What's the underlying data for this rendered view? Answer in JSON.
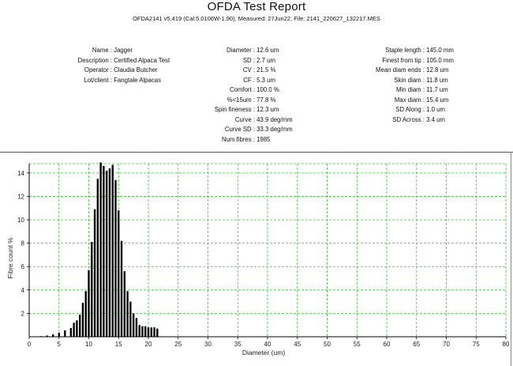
{
  "report": {
    "title": "OFDA Test Report",
    "subtitle": "OFDA2141 v5.419 (Cal:5.0106W-1.90), Measured: 27Jun22, File: 2141_220627_132217.MES"
  },
  "info": {
    "left": [
      {
        "label": "Name :",
        "value": "Jagger"
      },
      {
        "label": "Description :",
        "value": "Certified Alpaca Test"
      },
      {
        "label": "Operator :",
        "value": "Claudia Butcher"
      },
      {
        "label": "Lot/client :",
        "value": "Fangtale Alpacas"
      }
    ],
    "middle": [
      {
        "label": "Diameter :",
        "value": "12.6 um"
      },
      {
        "label": "SD :",
        "value": "2.7 um"
      },
      {
        "label": "CV :",
        "value": "21.5 %"
      },
      {
        "label": "CF :",
        "value": "5.3 um"
      },
      {
        "label": "Comfort :",
        "value": "100.0 %"
      },
      {
        "label": "%<15um :",
        "value": "77.8 %"
      },
      {
        "label": "Spin fineness :",
        "value": "12.3 um"
      },
      {
        "label": "Curve :",
        "value": "43.9 deg/mm"
      },
      {
        "label": "Curve SD :",
        "value": "33.3 deg/mm"
      },
      {
        "label": "Num fibres :",
        "value": "1985"
      }
    ],
    "right": [
      {
        "label": "Staple length :",
        "value": "145.0 mm"
      },
      {
        "label": "Finest from tip :",
        "value": "105.0 mm"
      },
      {
        "label": "Mean diam ends :",
        "value": "12.8 um"
      },
      {
        "label": "Skin diam :",
        "value": "11.8 um"
      },
      {
        "label": "Min diam :",
        "value": "11.7 um"
      },
      {
        "label": "Max diam :",
        "value": "15.4 um"
      },
      {
        "label": "SD Along :",
        "value": "1.0 um"
      },
      {
        "label": "SD Across :",
        "value": "3.4 um"
      }
    ]
  },
  "chart_data": {
    "type": "bar",
    "xlabel": "Diameter (um)",
    "ylabel": "Fibre count %",
    "xlim": [
      0,
      80
    ],
    "ylim": [
      0,
      14.8
    ],
    "x_ticks": [
      0,
      5,
      10,
      15,
      20,
      25,
      30,
      35,
      40,
      45,
      50,
      55,
      60,
      65,
      70,
      75,
      80
    ],
    "y_ticks": [
      2,
      4,
      6,
      8,
      10,
      12,
      14
    ],
    "grid": true,
    "bin_width_um": 0.5,
    "x": [
      2,
      3,
      4,
      5,
      6,
      7,
      7.5,
      8,
      8.5,
      9,
      9.5,
      10,
      10.5,
      11,
      11.5,
      12,
      12.5,
      13,
      13.5,
      14,
      14.5,
      15,
      15.5,
      16,
      16.5,
      17,
      17.5,
      18,
      18.5,
      19,
      19.5,
      20,
      20.5,
      21,
      21.5
    ],
    "values": [
      0.05,
      0.1,
      0.2,
      0.35,
      0.55,
      0.75,
      1.2,
      1.4,
      1.9,
      2.9,
      3.9,
      5.7,
      8.1,
      10.9,
      13.5,
      14.9,
      14.6,
      14.2,
      14.4,
      14.7,
      13.4,
      10.8,
      8.2,
      5.6,
      3.9,
      3.0,
      2.0,
      1.6,
      1.0,
      0.9,
      0.9,
      0.8,
      0.8,
      0.8,
      0.7
    ]
  }
}
